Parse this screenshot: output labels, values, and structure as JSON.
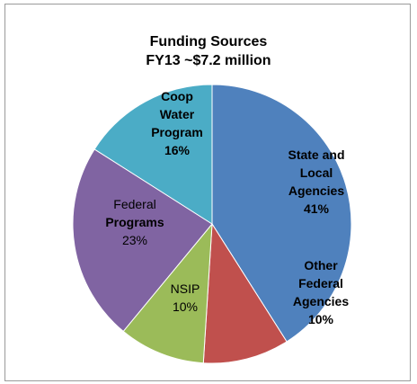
{
  "chart_data": {
    "type": "pie",
    "title": "Funding Sources",
    "subtitle": "FY13 ~$7.2 million",
    "slices": [
      {
        "lines": [
          {
            "text": "State and",
            "bold": true
          },
          {
            "text": "Local",
            "bold": true
          },
          {
            "text": "Agencies",
            "bold": true
          }
        ],
        "percent_label": "41%",
        "value": 41,
        "color": "#4f81bd"
      },
      {
        "lines": [
          {
            "text": "Other",
            "bold": true
          },
          {
            "text": "Federal",
            "bold": true
          },
          {
            "text": "Agencies",
            "bold": true
          }
        ],
        "percent_label": "10%",
        "value": 10,
        "color": "#c0504d"
      },
      {
        "lines": [
          {
            "text": "NSIP",
            "bold": false
          }
        ],
        "percent_label": "10%",
        "value": 10,
        "color": "#9bbb59"
      },
      {
        "lines": [
          {
            "text": "Federal",
            "bold": false
          },
          {
            "text": "Programs",
            "bold": true
          }
        ],
        "percent_label": "23%",
        "value": 23,
        "color": "#8064a2"
      },
      {
        "lines": [
          {
            "text": "Coop",
            "bold": true
          },
          {
            "text": "Water",
            "bold": true
          },
          {
            "text": "Program",
            "bold": true
          }
        ],
        "percent_label": "16%",
        "value": 16,
        "color": "#4bacc6"
      }
    ]
  }
}
